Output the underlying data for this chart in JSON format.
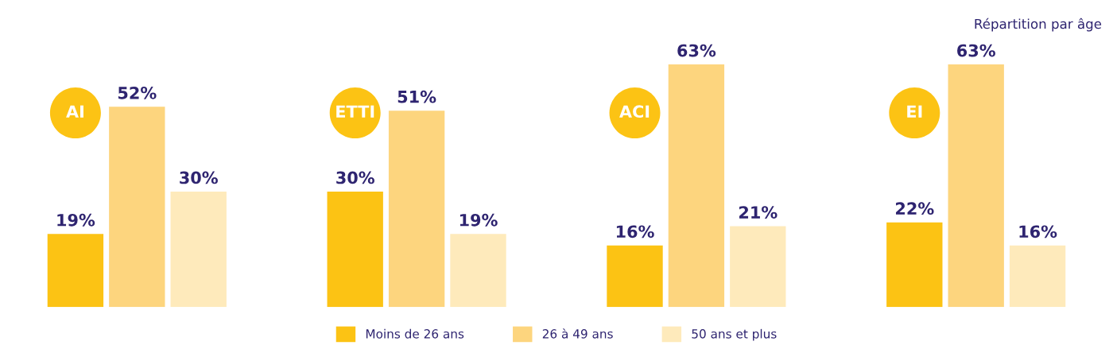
{
  "chart_data": {
    "type": "bar",
    "title": "Répartition par âge",
    "categories": [
      "AI",
      "ETTI",
      "ACI",
      "EI"
    ],
    "series": [
      {
        "name": "Moins de 26 ans",
        "color": "#fcc314",
        "values": [
          19,
          30,
          16,
          22
        ],
        "value_labels": [
          "19%",
          "30%",
          "16%",
          "22%"
        ]
      },
      {
        "name": "26 à 49 ans",
        "color": "#fdd57e",
        "values": [
          52,
          51,
          63,
          63
        ],
        "value_labels": [
          "52%",
          "51%",
          "63%",
          "63%"
        ]
      },
      {
        "name": "50 ans et plus",
        "color": "#feeabb",
        "values": [
          30,
          19,
          21,
          16
        ],
        "value_labels": [
          "30%",
          "19%",
          "21%",
          "16%"
        ]
      }
    ],
    "legend": "bottom"
  }
}
